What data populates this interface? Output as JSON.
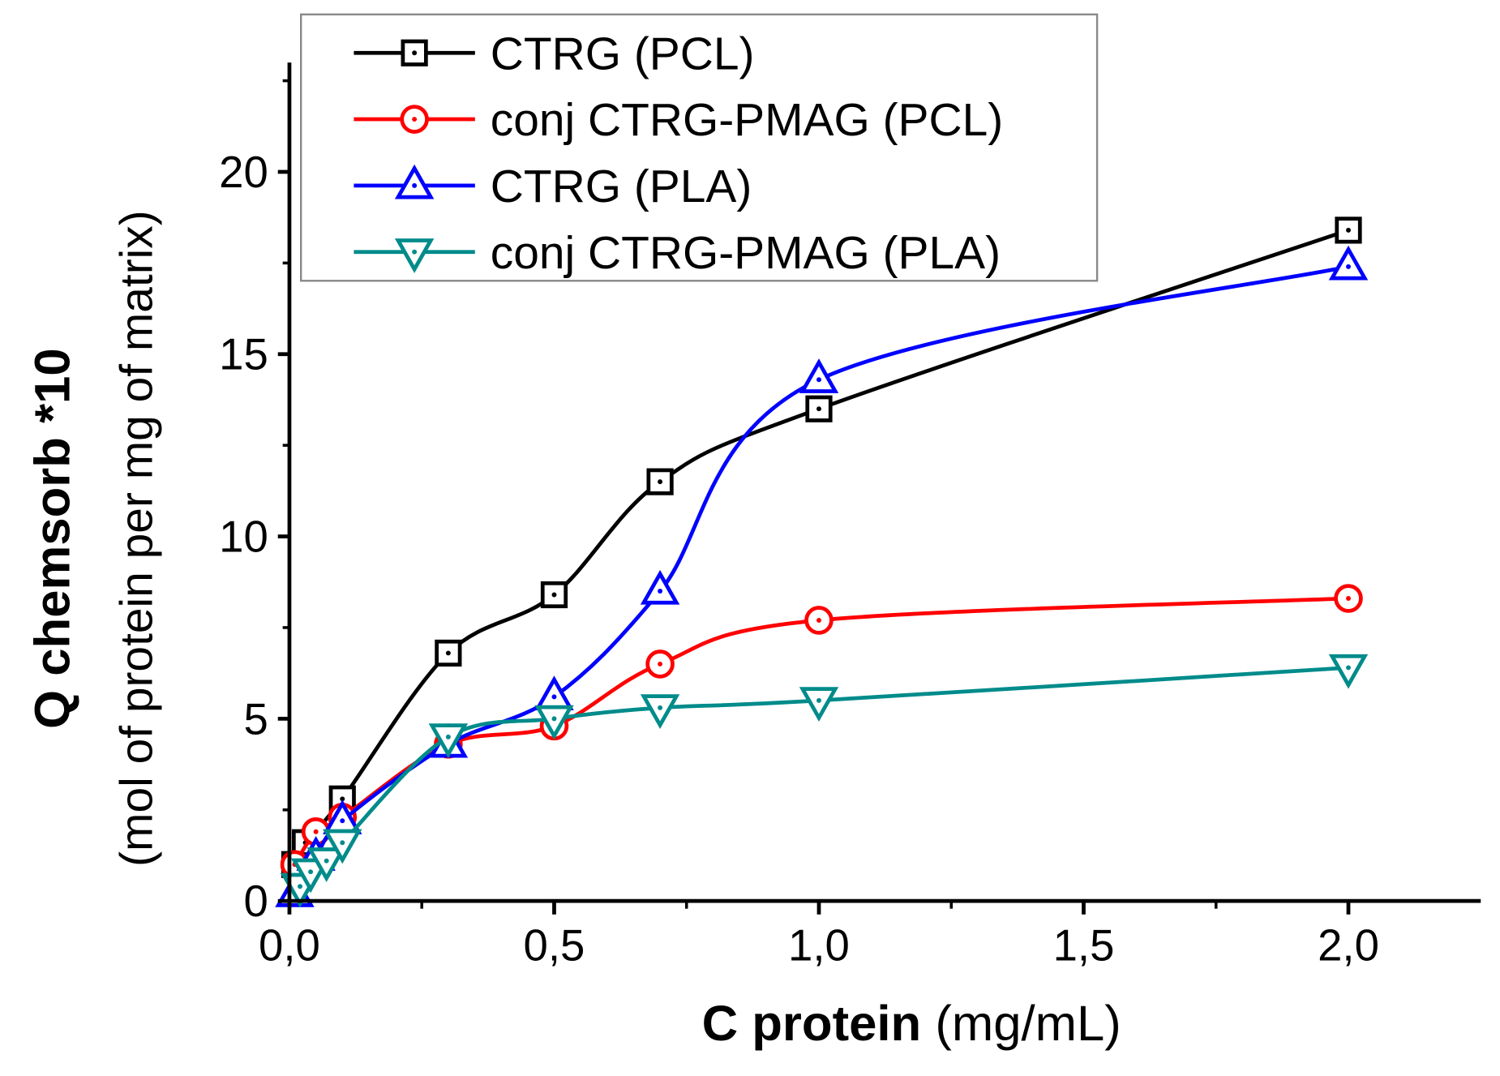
{
  "chart_data": {
    "type": "line",
    "title": "",
    "xlabel_bold": "C protein",
    "xlabel_unit": "(mg/mL)",
    "ylabel_bold": "Q chemsorb *10",
    "ylabel_unit": "(mol of protein per mg of matrix)",
    "xlim": [
      0,
      2.25
    ],
    "ylim": [
      0,
      23
    ],
    "xticks": [
      0,
      0.5,
      1.0,
      1.5,
      2.0
    ],
    "xtick_labels": [
      "0,0",
      "0,5",
      "1,0",
      "1,5",
      "2,0"
    ],
    "yticks": [
      0,
      5,
      10,
      15,
      20
    ],
    "ytick_labels": [
      "0",
      "5",
      "10",
      "15",
      "20"
    ],
    "grid": false,
    "legend_position": "top",
    "series": [
      {
        "name": "CTRG (PCL)",
        "color": "#000000",
        "marker": "square",
        "x": [
          0.01,
          0.03,
          0.1,
          0.3,
          0.5,
          0.7,
          1.0,
          2.0
        ],
        "y": [
          1.0,
          1.6,
          2.8,
          6.8,
          8.4,
          11.5,
          13.5,
          18.4
        ]
      },
      {
        "name": "conj CTRG-PMAG (PCL)",
        "color": "#ff0000",
        "marker": "circle",
        "x": [
          0.01,
          0.05,
          0.1,
          0.3,
          0.5,
          0.7,
          1.0,
          2.0
        ],
        "y": [
          1.0,
          1.9,
          2.3,
          4.3,
          4.8,
          6.5,
          7.7,
          8.3
        ]
      },
      {
        "name": "CTRG (PLA)",
        "color": "#0000ff",
        "marker": "triangle-up",
        "x": [
          0.01,
          0.05,
          0.1,
          0.3,
          0.5,
          0.7,
          1.0,
          2.0
        ],
        "y": [
          0.2,
          1.2,
          2.2,
          4.3,
          5.6,
          8.5,
          14.3,
          17.4
        ]
      },
      {
        "name": "conj CTRG-PMAG (PLA)",
        "color": "#008b8b",
        "marker": "triangle-down",
        "x": [
          0.02,
          0.04,
          0.07,
          0.1,
          0.3,
          0.5,
          0.7,
          1.0,
          2.0
        ],
        "y": [
          0.4,
          0.8,
          1.1,
          1.6,
          4.5,
          5.0,
          5.3,
          5.5,
          6.4
        ]
      }
    ]
  }
}
